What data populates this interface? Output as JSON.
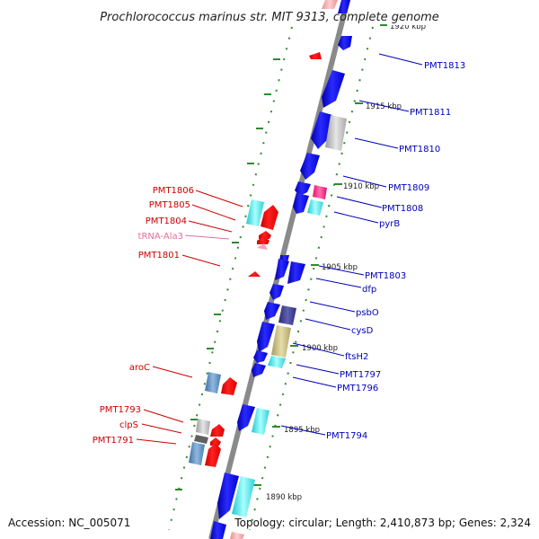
{
  "title": "Prochlorococcus marinus str. MIT 9313, complete genome",
  "footer": {
    "accession": "Accession: NC_005071",
    "topology": "Topology: circular; Length: 2,410,873 bp; Genes: 2,324"
  },
  "colors": {
    "backbone": "#8a8a8a",
    "forward_gene": "#0000ee",
    "reverse_gene": "#ee0000",
    "tick": "#2e8b2e"
  },
  "scale": {
    "partial_top": "1920 kbp",
    "labels": [
      "1915 kbp",
      "1910 kbp",
      "1905 kbp",
      "1900 kbp",
      "1895 kbp",
      "1890 kbp"
    ]
  },
  "genes_right": [
    "PMT1813",
    "PMT1811",
    "PMT1810",
    "PMT1809",
    "PMT1808",
    "pyrB",
    "PMT1803",
    "dfp",
    "psbO",
    "cysD",
    "ftsH2",
    "PMT1797",
    "PMT1796",
    "PMT1794"
  ],
  "genes_left": [
    "PMT1806",
    "PMT1805",
    "PMT1804",
    "tRNA-Ala3",
    "PMT1801",
    "aroC",
    "PMT1793",
    "clpS",
    "PMT1791"
  ]
}
